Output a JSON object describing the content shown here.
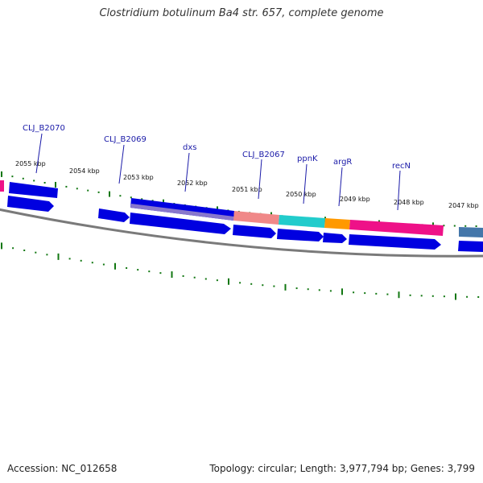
{
  "title": "Clostridium botulinum Ba4 str. 657, complete genome",
  "footer": {
    "accession": "Accession: NC_012658",
    "topology": "Topology: circular; Length: 3,977,794 bp; Genes: 3,799"
  },
  "colors": {
    "background": "#ffffff",
    "cds_blue": "#0000e0",
    "backbone": "#808080",
    "tick": "#117711",
    "label": "#1a1aa8",
    "pink": "#ee1188",
    "salmon": "#f08888",
    "cyan": "#22cccc",
    "orange": "#ff9900",
    "purple": "#8866cc",
    "steel_blue": "#4477aa"
  },
  "scale_labels": [
    "2055 kbp",
    "2054 kbp",
    "2053 kbp",
    "2052 kbp",
    "2051 kbp",
    "2050 kbp",
    "2049 kbp",
    "2048 kbp",
    "2047 kbp"
  ],
  "gene_labels": [
    "CLJ_B2070",
    "CLJ_B2069",
    "dxs",
    "CLJ_B2067",
    "ppnK",
    "argR",
    "recN"
  ]
}
